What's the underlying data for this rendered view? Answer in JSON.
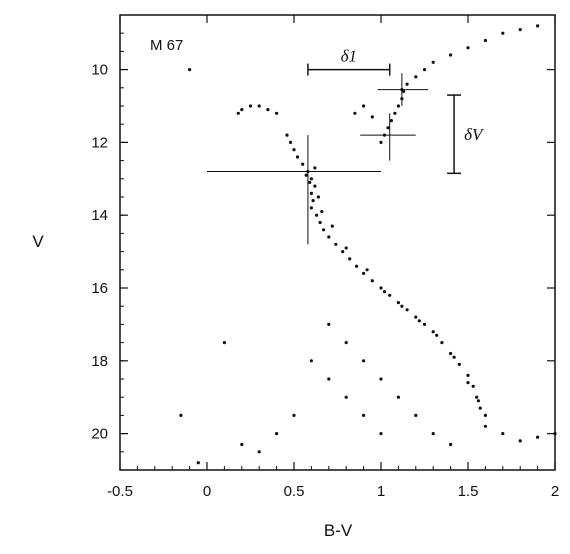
{
  "chart_data": {
    "type": "scatter",
    "title": "",
    "annotation_text": "M 67",
    "xlabel": "B-V",
    "ylabel": "V",
    "xlim": [
      -0.5,
      2.0
    ],
    "ylim": [
      21.0,
      8.5
    ],
    "y_inverted": true,
    "grid": false,
    "x_ticks": [
      {
        "value": -0.5,
        "label": "-0.5"
      },
      {
        "value": 0,
        "label": "0"
      },
      {
        "value": 0.5,
        "label": "0.5"
      },
      {
        "value": 1.0,
        "label": "1"
      },
      {
        "value": 1.5,
        "label": "1.5"
      },
      {
        "value": 2.0,
        "label": "2"
      }
    ],
    "y_ticks": [
      {
        "value": 10,
        "label": "10"
      },
      {
        "value": 12,
        "label": "12"
      },
      {
        "value": 14,
        "label": "14"
      },
      {
        "value": 16,
        "label": "16"
      },
      {
        "value": 18,
        "label": "18"
      },
      {
        "value": 20,
        "label": "20"
      }
    ],
    "delta_labels": {
      "d1": "δ1",
      "dV": "δV"
    },
    "series": [
      {
        "marker": "dot",
        "points": [
          [
            0.58,
            12.8
          ],
          [
            0.6,
            13.0
          ],
          [
            0.57,
            12.9
          ],
          [
            0.62,
            12.7
          ],
          [
            0.59,
            13.1
          ],
          [
            0.6,
            13.4
          ],
          [
            0.61,
            13.6
          ],
          [
            0.6,
            13.8
          ],
          [
            0.63,
            14.0
          ],
          [
            0.65,
            14.2
          ],
          [
            0.67,
            14.4
          ],
          [
            0.7,
            14.6
          ],
          [
            0.74,
            14.8
          ],
          [
            0.78,
            15.0
          ],
          [
            0.82,
            15.2
          ],
          [
            0.86,
            15.4
          ],
          [
            0.9,
            15.6
          ],
          [
            0.95,
            15.8
          ],
          [
            1.0,
            16.0
          ],
          [
            1.05,
            16.2
          ],
          [
            1.1,
            16.4
          ],
          [
            1.15,
            16.6
          ],
          [
            1.2,
            16.8
          ],
          [
            1.25,
            17.0
          ],
          [
            1.3,
            17.2
          ],
          [
            1.35,
            17.5
          ],
          [
            1.4,
            17.8
          ],
          [
            1.45,
            18.1
          ],
          [
            1.5,
            18.4
          ],
          [
            1.53,
            18.7
          ],
          [
            1.55,
            19.0
          ],
          [
            1.57,
            19.3
          ],
          [
            0.62,
            13.2
          ],
          [
            0.64,
            13.5
          ],
          [
            0.66,
            13.9
          ],
          [
            0.72,
            14.3
          ],
          [
            0.8,
            14.9
          ],
          [
            0.92,
            15.5
          ],
          [
            1.02,
            16.1
          ],
          [
            1.12,
            16.5
          ],
          [
            1.22,
            16.9
          ],
          [
            1.32,
            17.3
          ],
          [
            1.42,
            17.9
          ],
          [
            1.5,
            18.6
          ],
          [
            1.56,
            19.1
          ],
          [
            1.6,
            19.5
          ],
          [
            0.55,
            12.6
          ],
          [
            0.52,
            12.4
          ],
          [
            0.5,
            12.2
          ],
          [
            0.48,
            12.0
          ],
          [
            0.46,
            11.8
          ],
          [
            0.4,
            11.2
          ],
          [
            0.35,
            11.1
          ],
          [
            0.3,
            11.0
          ],
          [
            0.25,
            11.0
          ],
          [
            0.2,
            11.1
          ],
          [
            0.18,
            11.2
          ],
          [
            1.0,
            12.0
          ],
          [
            1.02,
            11.8
          ],
          [
            1.04,
            11.6
          ],
          [
            1.06,
            11.4
          ],
          [
            1.08,
            11.2
          ],
          [
            1.1,
            11.0
          ],
          [
            1.12,
            10.8
          ],
          [
            1.13,
            10.6
          ],
          [
            1.15,
            10.4
          ],
          [
            1.2,
            10.2
          ],
          [
            1.25,
            10.0
          ],
          [
            1.3,
            9.8
          ],
          [
            1.4,
            9.6
          ],
          [
            1.5,
            9.4
          ],
          [
            1.6,
            9.2
          ],
          [
            1.7,
            9.0
          ],
          [
            1.8,
            8.9
          ],
          [
            1.9,
            8.8
          ],
          [
            0.9,
            11.0
          ],
          [
            0.85,
            11.2
          ],
          [
            0.95,
            11.3
          ],
          [
            1.12,
            10.55
          ],
          [
            0.7,
            17.0
          ],
          [
            0.8,
            17.5
          ],
          [
            0.9,
            18.0
          ],
          [
            1.0,
            18.5
          ],
          [
            1.1,
            19.0
          ],
          [
            1.2,
            19.5
          ],
          [
            1.3,
            20.0
          ],
          [
            1.4,
            20.3
          ],
          [
            0.6,
            18.0
          ],
          [
            0.7,
            18.5
          ],
          [
            0.8,
            19.0
          ],
          [
            0.9,
            19.5
          ],
          [
            1.0,
            20.0
          ],
          [
            0.5,
            19.5
          ],
          [
            0.4,
            20.0
          ],
          [
            0.3,
            20.5
          ],
          [
            1.6,
            19.8
          ],
          [
            1.7,
            20.0
          ],
          [
            1.8,
            20.2
          ],
          [
            1.9,
            20.1
          ],
          [
            2.0,
            20.0
          ],
          [
            -0.1,
            10.0
          ],
          [
            -0.15,
            19.5
          ],
          [
            -0.05,
            20.8
          ],
          [
            0.1,
            17.5
          ],
          [
            0.2,
            20.3
          ]
        ]
      }
    ]
  }
}
